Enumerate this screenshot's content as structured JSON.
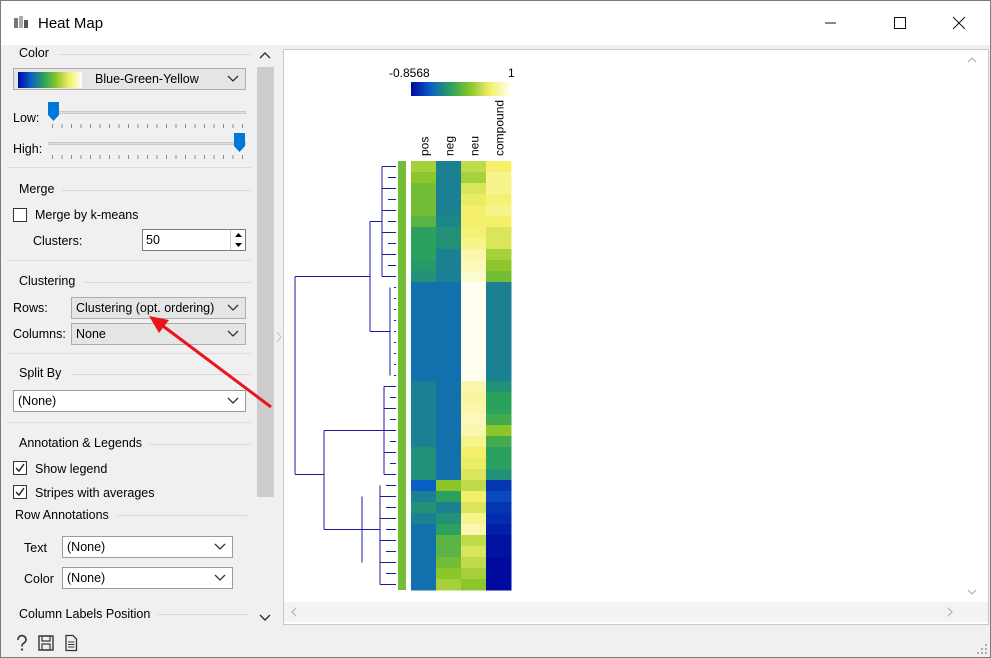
{
  "window": {
    "title": "Heat Map"
  },
  "color": {
    "group_title": "Color",
    "palette": "Blue-Green-Yellow",
    "low_label": "Low:",
    "high_label": "High:",
    "low_value": 0.0,
    "high_value": 1.0
  },
  "merge": {
    "group_title": "Merge",
    "merge_label": "Merge by k-means",
    "merge_checked": false,
    "clusters_label": "Clusters:",
    "clusters_value": "50"
  },
  "clustering": {
    "group_title": "Clustering",
    "rows_label": "Rows:",
    "rows_value": "Clustering (opt. ordering)",
    "columns_label": "Columns:",
    "columns_value": "None"
  },
  "split_by": {
    "group_title": "Split By",
    "value": "(None)"
  },
  "annotation": {
    "group_title": "Annotation & Legends",
    "show_legend_label": "Show legend",
    "show_legend_checked": true,
    "stripes_label": "Stripes with averages",
    "stripes_checked": true,
    "row_annotations_title": "Row Annotations",
    "text_label": "Text",
    "text_value": "(None)",
    "color_label": "Color",
    "color_value": "(None)",
    "column_labels_title": "Column Labels Position"
  },
  "footer": {
    "icons": [
      "help-icon",
      "save-icon",
      "report-icon"
    ]
  },
  "heatmap": {
    "legend_min": "-0.8568",
    "legend_max": "1",
    "columns": [
      "pos",
      "neg",
      "neu",
      "compound"
    ],
    "color_scale": [
      "#000a9e",
      "#0a5fc7",
      "#2aa15c",
      "#8cc62a",
      "#f4f06a",
      "#fffef0"
    ]
  },
  "chart_data": {
    "type": "heatmap",
    "columns": [
      "pos",
      "neg",
      "neu",
      "compound"
    ],
    "value_range": [
      -0.8568,
      1
    ],
    "rows": [
      [
        0.65,
        0.3,
        0.7,
        0.8
      ],
      [
        0.6,
        0.3,
        0.65,
        0.85
      ],
      [
        0.55,
        0.3,
        0.75,
        0.85
      ],
      [
        0.55,
        0.3,
        0.78,
        0.82
      ],
      [
        0.55,
        0.3,
        0.8,
        0.85
      ],
      [
        0.5,
        0.32,
        0.8,
        0.8
      ],
      [
        0.4,
        0.35,
        0.82,
        0.75
      ],
      [
        0.4,
        0.35,
        0.85,
        0.75
      ],
      [
        0.4,
        0.3,
        0.9,
        0.65
      ],
      [
        0.38,
        0.3,
        0.92,
        0.6
      ],
      [
        0.35,
        0.3,
        0.95,
        0.55
      ],
      [
        0.25,
        0.25,
        1.0,
        0.3
      ],
      [
        0.25,
        0.25,
        1.0,
        0.3
      ],
      [
        0.25,
        0.25,
        1.0,
        0.3
      ],
      [
        0.25,
        0.25,
        1.0,
        0.3
      ],
      [
        0.25,
        0.25,
        1.0,
        0.3
      ],
      [
        0.25,
        0.25,
        1.0,
        0.3
      ],
      [
        0.25,
        0.25,
        1.0,
        0.3
      ],
      [
        0.25,
        0.25,
        1.0,
        0.3
      ],
      [
        0.25,
        0.25,
        1.0,
        0.3
      ],
      [
        0.3,
        0.25,
        0.9,
        0.35
      ],
      [
        0.3,
        0.25,
        0.88,
        0.4
      ],
      [
        0.3,
        0.25,
        0.9,
        0.4
      ],
      [
        0.3,
        0.25,
        0.92,
        0.45
      ],
      [
        0.3,
        0.25,
        0.9,
        0.6
      ],
      [
        0.3,
        0.25,
        0.85,
        0.45
      ],
      [
        0.35,
        0.25,
        0.8,
        0.4
      ],
      [
        0.35,
        0.25,
        0.78,
        0.4
      ],
      [
        0.35,
        0.25,
        0.75,
        0.35
      ],
      [
        0.2,
        0.6,
        0.7,
        0.1
      ],
      [
        0.3,
        0.4,
        0.8,
        0.15
      ],
      [
        0.35,
        0.3,
        0.75,
        0.1
      ],
      [
        0.3,
        0.35,
        0.85,
        0.08
      ],
      [
        0.25,
        0.4,
        0.9,
        0.05
      ],
      [
        0.25,
        0.5,
        0.7,
        0.02
      ],
      [
        0.25,
        0.5,
        0.75,
        0.02
      ],
      [
        0.25,
        0.55,
        0.7,
        0.0
      ],
      [
        0.25,
        0.6,
        0.65,
        0.0
      ],
      [
        0.25,
        0.65,
        0.6,
        0.0
      ]
    ],
    "row_stripe": 0.55
  }
}
